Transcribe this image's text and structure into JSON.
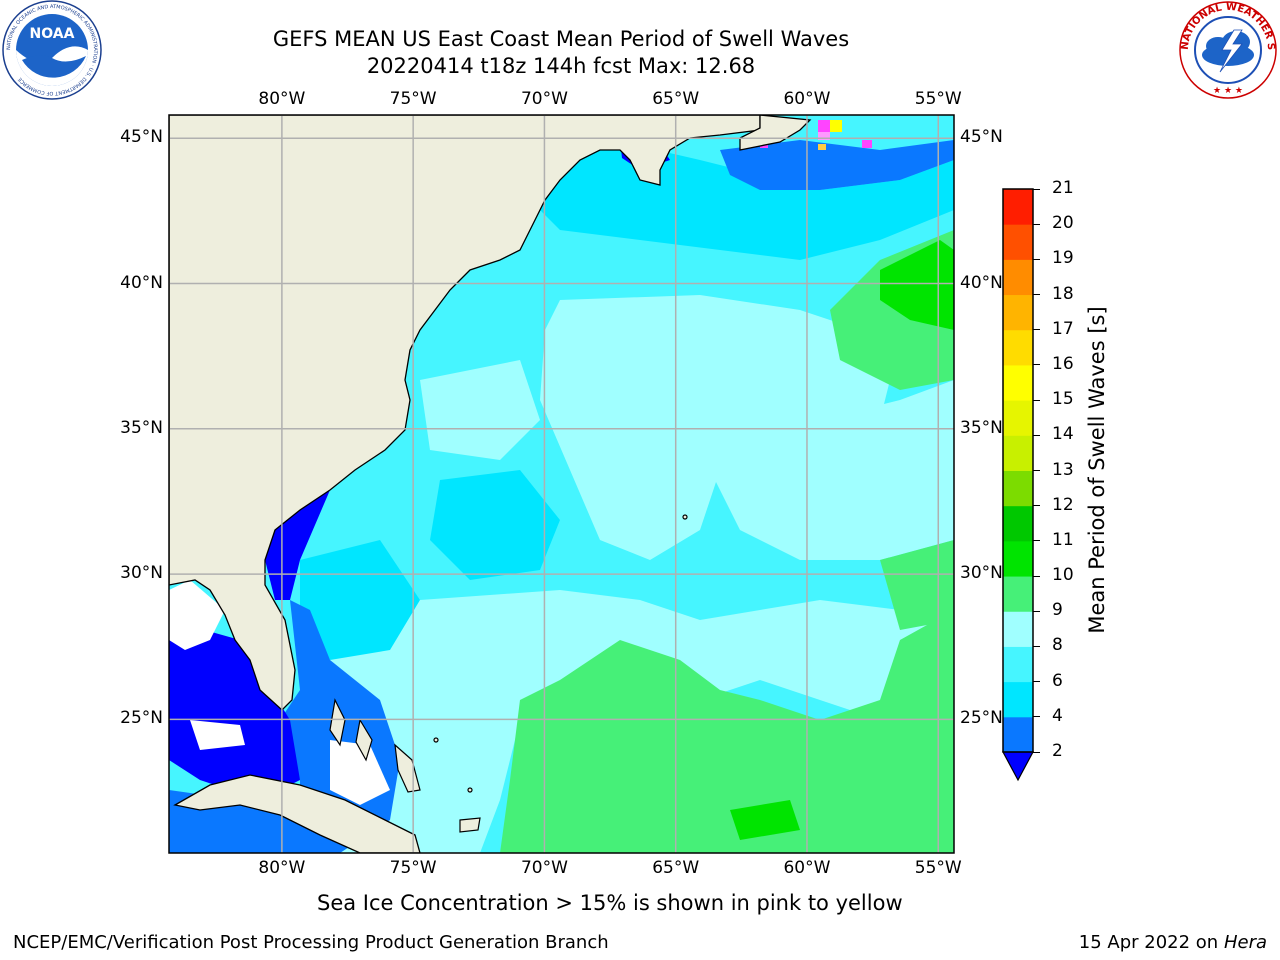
{
  "header": {
    "title_line1": "GEFS MEAN US East Coast Mean Period of Swell Waves",
    "title_line2": "20220414 t18z 144h fcst   Max: 12.68"
  },
  "logos": {
    "noaa_text": "NOAA",
    "noaa_ring": "NATIONAL OCEANIC AND ATMOSPHERIC ADMINISTRATION · U.S. DEPARTMENT OF COMMERCE",
    "nws_ring": "NATIONAL WEATHER SERVICE"
  },
  "map": {
    "lon_labels": [
      "80°W",
      "75°W",
      "70°W",
      "65°W",
      "60°W",
      "55°W"
    ],
    "lat_labels": [
      "45°N",
      "40°N",
      "35°N",
      "30°N",
      "25°N"
    ],
    "lon_values": [
      -80,
      -75,
      -70,
      -65,
      -60,
      -55
    ],
    "lat_values": [
      45,
      40,
      35,
      30,
      25
    ],
    "lon_range": [
      -84.3,
      -54.4
    ],
    "lat_range": [
      20.4,
      45.8
    ],
    "grid": true
  },
  "colorbar": {
    "label": "Mean Period of Swell Waves [s]",
    "ticks": [
      "2",
      "4",
      "6",
      "8",
      "9",
      "10",
      "11",
      "12",
      "13",
      "14",
      "15",
      "16",
      "17",
      "18",
      "19",
      "20",
      "21"
    ],
    "colors": [
      "#0a78ff",
      "#00e6ff",
      "#46f5ff",
      "#a0ffff",
      "#46f078",
      "#00e400",
      "#00c800",
      "#7cdc00",
      "#c8f000",
      "#e6f500",
      "#ffff00",
      "#ffdc00",
      "#ffb400",
      "#ff8c00",
      "#ff5000",
      "#ff1e00",
      "#ff0000"
    ],
    "underflow_color": "#0000ff"
  },
  "palette": {
    "land": "#eeeedd",
    "ocean_base": "#46f5ff",
    "light_cyan": "#a0ffff",
    "medium_cyan": "#00e6ff",
    "green": "#46f078",
    "bright_green": "#00e400",
    "blue": "#0a78ff",
    "deep_blue": "#0000ff",
    "ice_pink": "#ff44ff",
    "ice_yellow": "#ffff00",
    "grid": "#b0b0b0"
  },
  "notes": {
    "ice": "Sea Ice Concentration > 15% is shown in pink to yellow"
  },
  "footer": {
    "left": "NCEP/EMC/Verification Post Processing Product Generation Branch",
    "date": "15 Apr 2022 on ",
    "machine": "Hera"
  }
}
